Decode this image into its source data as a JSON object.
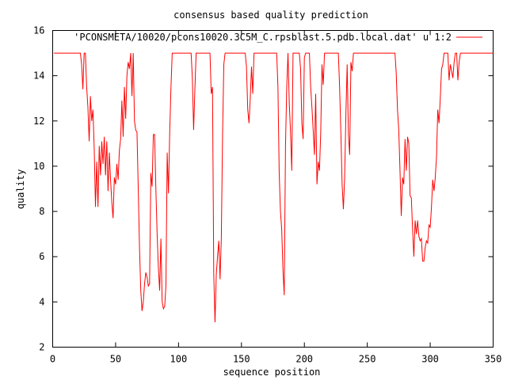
{
  "chart_data": {
    "type": "line",
    "title": "consensus based quality prediction",
    "xlabel": "sequence position",
    "ylabel": "quality",
    "xlim": [
      0,
      350
    ],
    "ylim": [
      2,
      16
    ],
    "x_ticks": [
      "0",
      "50",
      "100",
      "150",
      "200",
      "250",
      "300",
      "350"
    ],
    "y_ticks": [
      "2",
      "4",
      "6",
      "8",
      "10",
      "12",
      "14",
      "16"
    ],
    "grid": false,
    "legend_position": "top-right",
    "series": [
      {
        "name": "'PCONSMETA/10020/pcons10020.3C5M_C.rpsblast.5.pdb.local.dat' u 1:2",
        "color": "#ff0000",
        "points": [
          [
            1,
            15
          ],
          [
            22,
            15
          ],
          [
            23,
            14.5
          ],
          [
            24,
            13.4
          ],
          [
            25,
            15
          ],
          [
            26,
            15
          ],
          [
            27,
            13.5
          ],
          [
            28,
            12.6
          ],
          [
            29,
            11.1
          ],
          [
            30,
            13.1
          ],
          [
            31,
            12
          ],
          [
            32,
            12.5
          ],
          [
            33,
            10.8
          ],
          [
            34,
            8.2
          ],
          [
            35,
            10.2
          ],
          [
            36,
            8.2
          ],
          [
            37,
            10.9
          ],
          [
            38,
            9.6
          ],
          [
            39,
            11.1
          ],
          [
            40,
            10.1
          ],
          [
            41,
            11.3
          ],
          [
            42,
            9.6
          ],
          [
            43,
            11.1
          ],
          [
            44,
            8.9
          ],
          [
            45,
            10.6
          ],
          [
            46,
            9.4
          ],
          [
            47,
            8.4
          ],
          [
            48,
            7.7
          ],
          [
            49,
            9.5
          ],
          [
            50,
            9.2
          ],
          [
            51,
            10.1
          ],
          [
            52,
            9.4
          ],
          [
            53,
            10.7
          ],
          [
            54,
            11.2
          ],
          [
            55,
            12.9
          ],
          [
            56,
            11.3
          ],
          [
            57,
            13.5
          ],
          [
            58,
            12.1
          ],
          [
            59,
            14.0
          ],
          [
            60,
            14.6
          ],
          [
            61,
            14.3
          ],
          [
            62,
            15
          ],
          [
            63,
            13.1
          ],
          [
            64,
            15
          ],
          [
            65,
            12
          ],
          [
            66,
            11.6
          ],
          [
            67,
            11.5
          ],
          [
            68,
            9
          ],
          [
            69,
            6.4
          ],
          [
            70,
            4.5
          ],
          [
            71,
            3.6
          ],
          [
            72,
            4.0
          ],
          [
            73,
            4.8
          ],
          [
            74,
            5.3
          ],
          [
            75,
            5.1
          ],
          [
            76,
            4.7
          ],
          [
            77,
            4.8
          ],
          [
            78,
            9.7
          ],
          [
            79,
            9.1
          ],
          [
            80,
            11.4
          ],
          [
            81,
            11.4
          ],
          [
            82,
            9
          ],
          [
            83,
            7.0
          ],
          [
            84,
            5.5
          ],
          [
            85,
            4.5
          ],
          [
            86,
            6.8
          ],
          [
            87,
            4.0
          ],
          [
            88,
            3.7
          ],
          [
            89,
            3.8
          ],
          [
            90,
            4.7
          ],
          [
            91,
            10.6
          ],
          [
            92,
            8.8
          ],
          [
            93,
            11.5
          ],
          [
            94,
            13.5
          ],
          [
            95,
            15
          ],
          [
            110,
            15
          ],
          [
            111,
            13.9
          ],
          [
            112,
            11.6
          ],
          [
            113,
            13.4
          ],
          [
            114,
            15
          ],
          [
            125,
            15
          ],
          [
            126,
            13.2
          ],
          [
            127,
            13.5
          ],
          [
            128,
            5.2
          ],
          [
            129,
            3.1
          ],
          [
            130,
            5.2
          ],
          [
            131,
            6.0
          ],
          [
            132,
            6.7
          ],
          [
            133,
            5.0
          ],
          [
            134,
            6.8
          ],
          [
            135,
            11.4
          ],
          [
            136,
            14.5
          ],
          [
            137,
            15
          ],
          [
            153,
            15
          ],
          [
            154,
            14.4
          ],
          [
            155,
            12.5
          ],
          [
            156,
            11.9
          ],
          [
            157,
            13.0
          ],
          [
            158,
            14.4
          ],
          [
            159,
            13.2
          ],
          [
            160,
            15
          ],
          [
            178,
            15
          ],
          [
            179,
            13.5
          ],
          [
            180,
            9.7
          ],
          [
            181,
            8
          ],
          [
            182,
            7.2
          ],
          [
            183,
            5.4
          ],
          [
            184,
            4.3
          ],
          [
            185,
            10.9
          ],
          [
            186,
            13.5
          ],
          [
            187,
            15
          ],
          [
            188,
            12.8
          ],
          [
            189,
            11.5
          ],
          [
            190,
            9.8
          ],
          [
            191,
            15
          ],
          [
            196,
            15
          ],
          [
            197,
            14.3
          ],
          [
            198,
            11.9
          ],
          [
            199,
            11.2
          ],
          [
            200,
            14.8
          ],
          [
            201,
            15
          ],
          [
            204,
            15
          ],
          [
            205,
            13.5
          ],
          [
            206,
            12.6
          ],
          [
            207,
            11.6
          ],
          [
            208,
            10.5
          ],
          [
            209,
            13.2
          ],
          [
            210,
            9.2
          ],
          [
            211,
            10.2
          ],
          [
            212,
            9.8
          ],
          [
            213,
            11.5
          ],
          [
            214,
            14.5
          ],
          [
            215,
            13.6
          ],
          [
            216,
            15
          ],
          [
            227,
            15
          ],
          [
            228,
            13.5
          ],
          [
            229,
            11.5
          ],
          [
            230,
            9.2
          ],
          [
            231,
            8.1
          ],
          [
            232,
            9.5
          ],
          [
            233,
            12.3
          ],
          [
            234,
            14.5
          ],
          [
            235,
            11.4
          ],
          [
            236,
            10.5
          ],
          [
            237,
            14.6
          ],
          [
            238,
            14.2
          ],
          [
            239,
            15
          ],
          [
            272,
            15
          ],
          [
            273,
            14.1
          ],
          [
            274,
            12.5
          ],
          [
            275,
            11.6
          ],
          [
            276,
            9.8
          ],
          [
            277,
            7.8
          ],
          [
            278,
            9.5
          ],
          [
            279,
            9.2
          ],
          [
            280,
            11.2
          ],
          [
            281,
            9.8
          ],
          [
            282,
            11.3
          ],
          [
            283,
            11.0
          ],
          [
            284,
            8.7
          ],
          [
            285,
            8.6
          ],
          [
            286,
            7.2
          ],
          [
            287,
            6.0
          ],
          [
            288,
            7.6
          ],
          [
            289,
            7.0
          ],
          [
            290,
            7.6
          ],
          [
            291,
            6.9
          ],
          [
            292,
            6.7
          ],
          [
            293,
            6.8
          ],
          [
            294,
            5.8
          ],
          [
            295,
            5.8
          ],
          [
            296,
            6.4
          ],
          [
            297,
            6.7
          ],
          [
            298,
            6.6
          ],
          [
            299,
            7.4
          ],
          [
            300,
            7.3
          ],
          [
            301,
            8.2
          ],
          [
            302,
            9.4
          ],
          [
            303,
            8.9
          ],
          [
            304,
            9.5
          ],
          [
            305,
            10.4
          ],
          [
            306,
            12.5
          ],
          [
            307,
            11.9
          ],
          [
            308,
            13.0
          ],
          [
            309,
            14.3
          ],
          [
            310,
            14.5
          ],
          [
            311,
            15
          ],
          [
            314,
            15
          ],
          [
            315,
            13.8
          ],
          [
            316,
            14.5
          ],
          [
            317,
            14.2
          ],
          [
            318,
            13.9
          ],
          [
            319,
            14.6
          ],
          [
            320,
            15
          ],
          [
            321,
            15
          ],
          [
            322,
            13.8
          ],
          [
            323,
            14.6
          ],
          [
            324,
            15
          ],
          [
            350,
            15
          ]
        ]
      }
    ]
  }
}
